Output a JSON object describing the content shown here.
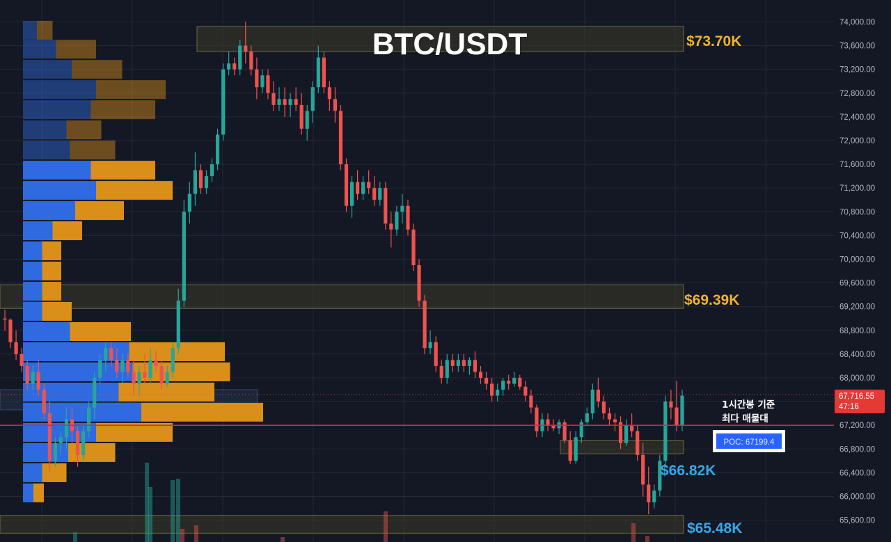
{
  "title": "BTC/USDT",
  "colors": {
    "background": "#141824",
    "grid": "#232838",
    "up": "#26a69a",
    "down": "#ef5350",
    "vp_buy": "#2f6ae0",
    "vp_sell": "#d98f1a",
    "poc_line": "#ef2222",
    "zone_fill": "#3a3a28",
    "zone_border": "#6a6a40",
    "label_gold": "#f0b429",
    "label_blue": "#35a7e8",
    "poc_box": "#2962ff"
  },
  "chart_data": {
    "type": "candlestick",
    "title": "BTC/USDT",
    "xlabel": "",
    "ylabel": "",
    "ylim": [
      65350,
      74250
    ],
    "yticks": [
      65600,
      66000,
      66400,
      66800,
      67200,
      67600,
      68000,
      68400,
      68800,
      69200,
      69600,
      70000,
      70400,
      70800,
      71200,
      71600,
      72000,
      72400,
      72800,
      73200,
      73600,
      74000
    ],
    "ytick_labels": [
      "65,600.00",
      "66,000.00",
      "66,400.00",
      "66,800.00",
      "67,200.00",
      "67,600.00",
      "68,000.00",
      "68,400.00",
      "68,800.00",
      "69,200.00",
      "69,600.00",
      "70,000.00",
      "70,400.00",
      "70,800.00",
      "71,200.00",
      "71,600.00",
      "72,000.00",
      "72,400.00",
      "72,800.00",
      "73,200.00",
      "73,600.00",
      "74,000.00"
    ],
    "grid": true,
    "last_price": 67716.55,
    "last_price_label": "67,716.55",
    "countdown": "47:16",
    "poc_price": 67199.4,
    "poc_label": "POC: 67199.4",
    "poc_note": [
      "1시간봉 기준",
      "최다 매물대"
    ],
    "zones": [
      {
        "low": 73500,
        "high": 73920,
        "label": "$73.70K",
        "label_color": "gold"
      },
      {
        "low": 69170,
        "high": 69570,
        "label": "$69.39K",
        "label_color": "gold"
      },
      {
        "low": 66720,
        "high": 66940,
        "label": "$66.82K",
        "label_color": "blue"
      },
      {
        "low": 65380,
        "high": 65680,
        "label": "$65.48K",
        "label_color": "blue"
      }
    ],
    "profile_zone": {
      "low": 67460,
      "high": 67800
    },
    "volume_profile": [
      {
        "price": 73860,
        "buy": 8,
        "sell": 9
      },
      {
        "price": 73540,
        "buy": 19,
        "sell": 23
      },
      {
        "price": 73200,
        "buy": 28,
        "sell": 29
      },
      {
        "price": 72860,
        "buy": 42,
        "sell": 40
      },
      {
        "price": 72520,
        "buy": 39,
        "sell": 37
      },
      {
        "price": 72180,
        "buy": 25,
        "sell": 20
      },
      {
        "price": 71840,
        "buy": 27,
        "sell": 26
      },
      {
        "price": 71500,
        "buy": 39,
        "sell": 37
      },
      {
        "price": 71160,
        "buy": 42,
        "sell": 44
      },
      {
        "price": 70820,
        "buy": 30,
        "sell": 28
      },
      {
        "price": 70480,
        "buy": 17,
        "sell": 17
      },
      {
        "price": 70140,
        "buy": 11,
        "sell": 11
      },
      {
        "price": 69800,
        "buy": 11,
        "sell": 11
      },
      {
        "price": 69460,
        "buy": 11,
        "sell": 11
      },
      {
        "price": 69120,
        "buy": 11,
        "sell": 17
      },
      {
        "price": 68780,
        "buy": 27,
        "sell": 35
      },
      {
        "price": 68440,
        "buy": 61,
        "sell": 55
      },
      {
        "price": 68100,
        "buy": 63,
        "sell": 56
      },
      {
        "price": 67760,
        "buy": 55,
        "sell": 55
      },
      {
        "price": 67420,
        "buy": 68,
        "sell": 70
      },
      {
        "price": 67080,
        "buy": 42,
        "sell": 44
      },
      {
        "price": 66740,
        "buy": 26,
        "sell": 27
      },
      {
        "price": 66400,
        "buy": 11,
        "sell": 14
      },
      {
        "price": 66060,
        "buy": 6,
        "sell": 6
      }
    ],
    "candles": [
      {
        "o": 69000,
        "h": 69150,
        "l": 68800,
        "c": 68980
      },
      {
        "o": 68980,
        "h": 69000,
        "l": 68500,
        "c": 68600
      },
      {
        "o": 68600,
        "h": 68800,
        "l": 68300,
        "c": 68400
      },
      {
        "o": 68400,
        "h": 68500,
        "l": 68100,
        "c": 68200
      },
      {
        "o": 68200,
        "h": 68300,
        "l": 67800,
        "c": 67900
      },
      {
        "o": 67900,
        "h": 68200,
        "l": 67800,
        "c": 68100
      },
      {
        "o": 68100,
        "h": 68300,
        "l": 67700,
        "c": 67800
      },
      {
        "o": 67800,
        "h": 67900,
        "l": 67300,
        "c": 67400
      },
      {
        "o": 67400,
        "h": 67600,
        "l": 66400,
        "c": 66600
      },
      {
        "o": 66600,
        "h": 67000,
        "l": 66500,
        "c": 66900
      },
      {
        "o": 66900,
        "h": 67100,
        "l": 66700,
        "c": 67000
      },
      {
        "o": 67000,
        "h": 67500,
        "l": 66800,
        "c": 67300
      },
      {
        "o": 67300,
        "h": 67500,
        "l": 66900,
        "c": 67100
      },
      {
        "o": 67100,
        "h": 67200,
        "l": 66500,
        "c": 66700
      },
      {
        "o": 66700,
        "h": 67200,
        "l": 66600,
        "c": 67100
      },
      {
        "o": 67100,
        "h": 67600,
        "l": 67000,
        "c": 67500
      },
      {
        "o": 67500,
        "h": 68100,
        "l": 67300,
        "c": 68000
      },
      {
        "o": 68000,
        "h": 68400,
        "l": 67900,
        "c": 68300
      },
      {
        "o": 68300,
        "h": 68600,
        "l": 68100,
        "c": 68500
      },
      {
        "o": 68500,
        "h": 68600,
        "l": 68200,
        "c": 68300
      },
      {
        "o": 68300,
        "h": 68500,
        "l": 68000,
        "c": 68100
      },
      {
        "o": 68100,
        "h": 68400,
        "l": 67900,
        "c": 68300
      },
      {
        "o": 68300,
        "h": 68400,
        "l": 68000,
        "c": 68100
      },
      {
        "o": 68100,
        "h": 68300,
        "l": 67700,
        "c": 67900
      },
      {
        "o": 67900,
        "h": 68200,
        "l": 67700,
        "c": 68100
      },
      {
        "o": 68100,
        "h": 68400,
        "l": 67900,
        "c": 68000
      },
      {
        "o": 68000,
        "h": 68500,
        "l": 67900,
        "c": 68300
      },
      {
        "o": 68300,
        "h": 68450,
        "l": 68100,
        "c": 68200
      },
      {
        "o": 68200,
        "h": 68300,
        "l": 67800,
        "c": 67900
      },
      {
        "o": 67900,
        "h": 68200,
        "l": 67850,
        "c": 68100
      },
      {
        "o": 68100,
        "h": 68600,
        "l": 68000,
        "c": 68500
      },
      {
        "o": 68500,
        "h": 69500,
        "l": 68400,
        "c": 69300
      },
      {
        "o": 69300,
        "h": 71000,
        "l": 69200,
        "c": 70800
      },
      {
        "o": 70800,
        "h": 71300,
        "l": 70600,
        "c": 71100
      },
      {
        "o": 71100,
        "h": 71800,
        "l": 70900,
        "c": 71500
      },
      {
        "o": 71500,
        "h": 71600,
        "l": 71100,
        "c": 71200
      },
      {
        "o": 71200,
        "h": 71500,
        "l": 71100,
        "c": 71400
      },
      {
        "o": 71400,
        "h": 71700,
        "l": 71300,
        "c": 71600
      },
      {
        "o": 71600,
        "h": 72200,
        "l": 71500,
        "c": 72100
      },
      {
        "o": 72100,
        "h": 73300,
        "l": 72000,
        "c": 73200
      },
      {
        "o": 73200,
        "h": 73500,
        "l": 73100,
        "c": 73300
      },
      {
        "o": 73300,
        "h": 73400,
        "l": 73100,
        "c": 73200
      },
      {
        "o": 73200,
        "h": 73700,
        "l": 73100,
        "c": 73600
      },
      {
        "o": 73600,
        "h": 74000,
        "l": 73300,
        "c": 73500
      },
      {
        "o": 73500,
        "h": 73600,
        "l": 73100,
        "c": 73200
      },
      {
        "o": 73200,
        "h": 73400,
        "l": 72700,
        "c": 72900
      },
      {
        "o": 72900,
        "h": 73200,
        "l": 72800,
        "c": 73100
      },
      {
        "o": 73100,
        "h": 73200,
        "l": 72700,
        "c": 72800
      },
      {
        "o": 72800,
        "h": 73000,
        "l": 72500,
        "c": 72600
      },
      {
        "o": 72600,
        "h": 72900,
        "l": 72500,
        "c": 72700
      },
      {
        "o": 72700,
        "h": 72900,
        "l": 72400,
        "c": 72600
      },
      {
        "o": 72600,
        "h": 72800,
        "l": 72400,
        "c": 72700
      },
      {
        "o": 72700,
        "h": 72900,
        "l": 72500,
        "c": 72600
      },
      {
        "o": 72600,
        "h": 72800,
        "l": 72100,
        "c": 72200
      },
      {
        "o": 72200,
        "h": 72600,
        "l": 72000,
        "c": 72500
      },
      {
        "o": 72500,
        "h": 73000,
        "l": 72300,
        "c": 72900
      },
      {
        "o": 72900,
        "h": 73600,
        "l": 72800,
        "c": 73400
      },
      {
        "o": 73400,
        "h": 73500,
        "l": 72800,
        "c": 72900
      },
      {
        "o": 72900,
        "h": 73000,
        "l": 72500,
        "c": 72700
      },
      {
        "o": 72700,
        "h": 72900,
        "l": 72300,
        "c": 72500
      },
      {
        "o": 72500,
        "h": 72600,
        "l": 71500,
        "c": 71600
      },
      {
        "o": 71600,
        "h": 71700,
        "l": 70800,
        "c": 70900
      },
      {
        "o": 70900,
        "h": 71400,
        "l": 70700,
        "c": 71300
      },
      {
        "o": 71300,
        "h": 71500,
        "l": 71000,
        "c": 71100
      },
      {
        "o": 71100,
        "h": 71400,
        "l": 71000,
        "c": 71300
      },
      {
        "o": 71300,
        "h": 71500,
        "l": 71100,
        "c": 71200
      },
      {
        "o": 71200,
        "h": 71400,
        "l": 70900,
        "c": 71000
      },
      {
        "o": 71000,
        "h": 71300,
        "l": 70900,
        "c": 71200
      },
      {
        "o": 71200,
        "h": 71300,
        "l": 70500,
        "c": 70600
      },
      {
        "o": 70600,
        "h": 70800,
        "l": 70200,
        "c": 70500
      },
      {
        "o": 70500,
        "h": 70900,
        "l": 70400,
        "c": 70800
      },
      {
        "o": 70800,
        "h": 71100,
        "l": 70600,
        "c": 70900
      },
      {
        "o": 70900,
        "h": 71000,
        "l": 70400,
        "c": 70500
      },
      {
        "o": 70500,
        "h": 70600,
        "l": 69800,
        "c": 69900
      },
      {
        "o": 69900,
        "h": 70000,
        "l": 69200,
        "c": 69300
      },
      {
        "o": 69300,
        "h": 69400,
        "l": 68400,
        "c": 68500
      },
      {
        "o": 68500,
        "h": 68800,
        "l": 68400,
        "c": 68600
      },
      {
        "o": 68600,
        "h": 68700,
        "l": 68100,
        "c": 68200
      },
      {
        "o": 68200,
        "h": 68300,
        "l": 67900,
        "c": 68000
      },
      {
        "o": 68000,
        "h": 68400,
        "l": 67900,
        "c": 68300
      },
      {
        "o": 68300,
        "h": 68400,
        "l": 68100,
        "c": 68200
      },
      {
        "o": 68200,
        "h": 68400,
        "l": 68100,
        "c": 68300
      },
      {
        "o": 68300,
        "h": 68400,
        "l": 68100,
        "c": 68200
      },
      {
        "o": 68200,
        "h": 68350,
        "l": 68050,
        "c": 68300
      },
      {
        "o": 68300,
        "h": 68450,
        "l": 68000,
        "c": 68100
      },
      {
        "o": 68100,
        "h": 68200,
        "l": 67900,
        "c": 68000
      },
      {
        "o": 68000,
        "h": 68100,
        "l": 67800,
        "c": 67900
      },
      {
        "o": 67900,
        "h": 68000,
        "l": 67600,
        "c": 67700
      },
      {
        "o": 67700,
        "h": 67900,
        "l": 67600,
        "c": 67800
      },
      {
        "o": 67800,
        "h": 68000,
        "l": 67700,
        "c": 67950
      },
      {
        "o": 67950,
        "h": 68050,
        "l": 67800,
        "c": 67900
      },
      {
        "o": 67900,
        "h": 68100,
        "l": 67850,
        "c": 68000
      },
      {
        "o": 68000,
        "h": 68050,
        "l": 67800,
        "c": 67850
      },
      {
        "o": 67850,
        "h": 67950,
        "l": 67600,
        "c": 67700
      },
      {
        "o": 67700,
        "h": 67800,
        "l": 67400,
        "c": 67500
      },
      {
        "o": 67500,
        "h": 67550,
        "l": 67000,
        "c": 67100
      },
      {
        "o": 67100,
        "h": 67400,
        "l": 67000,
        "c": 67300
      },
      {
        "o": 67300,
        "h": 67400,
        "l": 67100,
        "c": 67200
      },
      {
        "o": 67200,
        "h": 67300,
        "l": 67100,
        "c": 67150
      },
      {
        "o": 67150,
        "h": 67300,
        "l": 67050,
        "c": 67250
      },
      {
        "o": 67250,
        "h": 67300,
        "l": 66900,
        "c": 66950
      },
      {
        "o": 66950,
        "h": 67100,
        "l": 66550,
        "c": 66600
      },
      {
        "o": 66600,
        "h": 67100,
        "l": 66550,
        "c": 67000
      },
      {
        "o": 67000,
        "h": 67300,
        "l": 66900,
        "c": 67250
      },
      {
        "o": 67250,
        "h": 67500,
        "l": 67200,
        "c": 67400
      },
      {
        "o": 67400,
        "h": 67900,
        "l": 67300,
        "c": 67800
      },
      {
        "o": 67800,
        "h": 68000,
        "l": 67500,
        "c": 67600
      },
      {
        "o": 67600,
        "h": 67700,
        "l": 67300,
        "c": 67400
      },
      {
        "o": 67400,
        "h": 67500,
        "l": 67200,
        "c": 67300
      },
      {
        "o": 67300,
        "h": 67400,
        "l": 67100,
        "c": 67250
      },
      {
        "o": 67250,
        "h": 67350,
        "l": 66800,
        "c": 66900
      },
      {
        "o": 66900,
        "h": 67300,
        "l": 66850,
        "c": 67200
      },
      {
        "o": 67200,
        "h": 67400,
        "l": 67000,
        "c": 67100
      },
      {
        "o": 67100,
        "h": 67200,
        "l": 66600,
        "c": 66700
      },
      {
        "o": 66700,
        "h": 66900,
        "l": 66000,
        "c": 66200
      },
      {
        "o": 66200,
        "h": 66500,
        "l": 65700,
        "c": 65900
      },
      {
        "o": 65900,
        "h": 66200,
        "l": 65800,
        "c": 66100
      },
      {
        "o": 66100,
        "h": 66700,
        "l": 66000,
        "c": 66600
      },
      {
        "o": 66600,
        "h": 67700,
        "l": 66500,
        "c": 67600
      },
      {
        "o": 67600,
        "h": 67800,
        "l": 67300,
        "c": 67500
      },
      {
        "o": 67500,
        "h": 67950,
        "l": 67100,
        "c": 67200
      },
      {
        "o": 67200,
        "h": 67800,
        "l": 67100,
        "c": 67700
      }
    ]
  }
}
